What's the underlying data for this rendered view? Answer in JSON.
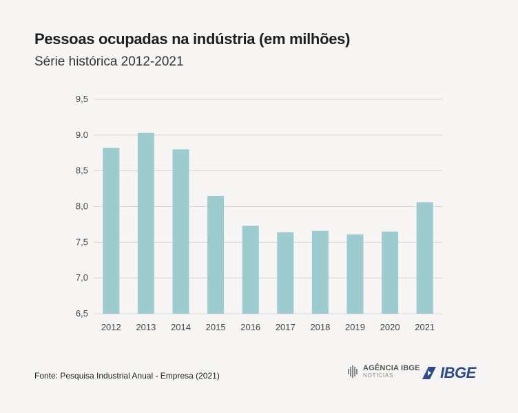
{
  "chart_data": {
    "type": "bar",
    "title": "Pessoas ocupadas na indústria (em milhões)",
    "subtitle": "Série histórica 2012-2021",
    "categories": [
      "2012",
      "2013",
      "2014",
      "2015",
      "2016",
      "2017",
      "2018",
      "2019",
      "2020",
      "2021"
    ],
    "values": [
      8.82,
      9.03,
      8.8,
      8.15,
      7.73,
      7.64,
      7.66,
      7.61,
      7.65,
      8.06
    ],
    "ylim": [
      6.5,
      9.5
    ],
    "yticks": [
      6.5,
      7.0,
      7.5,
      8.0,
      8.5,
      9.0,
      9.5
    ],
    "ytick_labels": [
      "6,5",
      "7,0",
      "7,5",
      "8,0",
      "8,5",
      "9.0",
      "9,5"
    ],
    "xlabel": "",
    "ylabel": "",
    "grid": true,
    "bar_color": "#9ccbd0"
  },
  "footer": {
    "source": "Fonte: Pesquisa Industrial Anual - Empresa (2021)",
    "agencia_main": "AGÊNCIA IBGE",
    "agencia_sub": "NOTÍCIAS",
    "ibge": "IBGE"
  }
}
